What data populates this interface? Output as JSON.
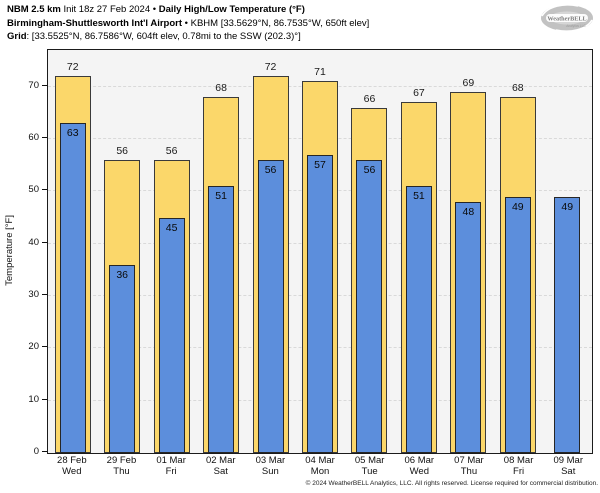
{
  "title": {
    "model": "NBM 2.5 km",
    "init": " Init 18z 27 Feb 2024 • ",
    "product": "Daily High/Low Temperature (°F)",
    "station_bold": "Birmingham-Shuttlesworth Int'l Airport",
    "station_rest": " • KBHM [33.5629°N, 86.7535°W, 650ft elev]",
    "grid_bold": "Grid",
    "grid_rest": ": [33.5525°N, 86.7586°W, 604ft elev, 0.78mi to the SSW (202.3)°]"
  },
  "logo": {
    "text": "WeatherBELL",
    "subtext": "Analytics LLC"
  },
  "chart_data": {
    "type": "bar",
    "title": "Daily High/Low Temperature (°F)",
    "ylabel": "Temperature [°F]",
    "ylim": [
      0,
      77
    ],
    "yticks": [
      0,
      10,
      20,
      30,
      40,
      50,
      60,
      70
    ],
    "grid": "horizontal-dashed",
    "legend": "none",
    "dates": [
      "28 Feb",
      "29 Feb",
      "01 Mar",
      "02 Mar",
      "03 Mar",
      "04 Mar",
      "05 Mar",
      "06 Mar",
      "07 Mar",
      "08 Mar",
      "09 Mar"
    ],
    "days": [
      "Wed",
      "Thu",
      "Fri",
      "Sat",
      "Sun",
      "Mon",
      "Tue",
      "Wed",
      "Thu",
      "Fri",
      "Sat"
    ],
    "series": [
      {
        "name": "High",
        "color": "#fbd76a",
        "values": [
          72,
          56,
          56,
          68,
          72,
          71,
          66,
          67,
          69,
          68,
          null
        ]
      },
      {
        "name": "Low",
        "color": "#5c8edc",
        "values": [
          63,
          36,
          45,
          51,
          56,
          57,
          56,
          51,
          48,
          49,
          49
        ]
      }
    ]
  },
  "footer": {
    "copyright": "© 2024 WeatherBELL Analytics, LLC. All rights reserved. License required for commercial distribution."
  }
}
